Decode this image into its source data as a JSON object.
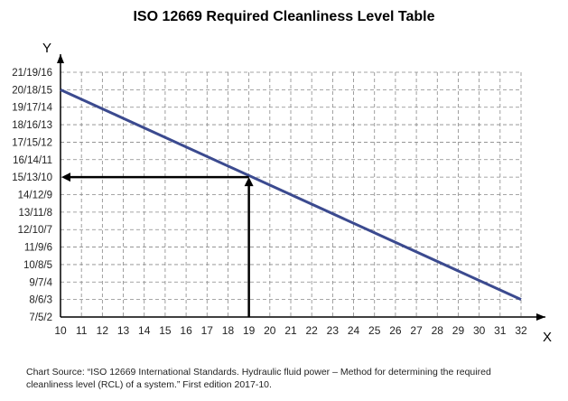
{
  "chart_data": {
    "type": "line",
    "title": "ISO 12669 Required Cleanliness Level Table",
    "xlabel": "X",
    "ylabel": "Y",
    "x_ticks": [
      10,
      11,
      12,
      13,
      14,
      15,
      16,
      17,
      18,
      19,
      20,
      21,
      22,
      23,
      24,
      25,
      26,
      27,
      28,
      29,
      30,
      31,
      32
    ],
    "y_ticks": [
      "7/5/2",
      "8/6/3",
      "9/7/4",
      "10/8/5",
      "11/9/6",
      "12/10/7",
      "13/11/8",
      "14/12/9",
      "15/13/10",
      "16/14/11",
      "17/15/12",
      "18/16/13",
      "19/17/14",
      "20/18/15",
      "21/19/16"
    ],
    "xlim": [
      10,
      32
    ],
    "ylim_index": [
      0,
      14
    ],
    "grid": true,
    "series": [
      {
        "x": [
          10,
          32
        ],
        "y": [
          "20/18/15",
          "8/6/3"
        ]
      }
    ],
    "annotation": {
      "x": 19,
      "y": "15/13/10",
      "note": "vertical arrow up from x=19 to the line, horizontal arrow left to 15/13/10"
    },
    "colors": {
      "line": "#3b4a8f",
      "arrow": "#000000",
      "grid": "#888888"
    }
  },
  "source": {
    "line1": "Chart Source: “ISO 12669 International Standards. Hydraulic fluid power – Method for determining the required",
    "line2": "cleanliness level (RCL) of a system.” First edition 2017-10."
  }
}
